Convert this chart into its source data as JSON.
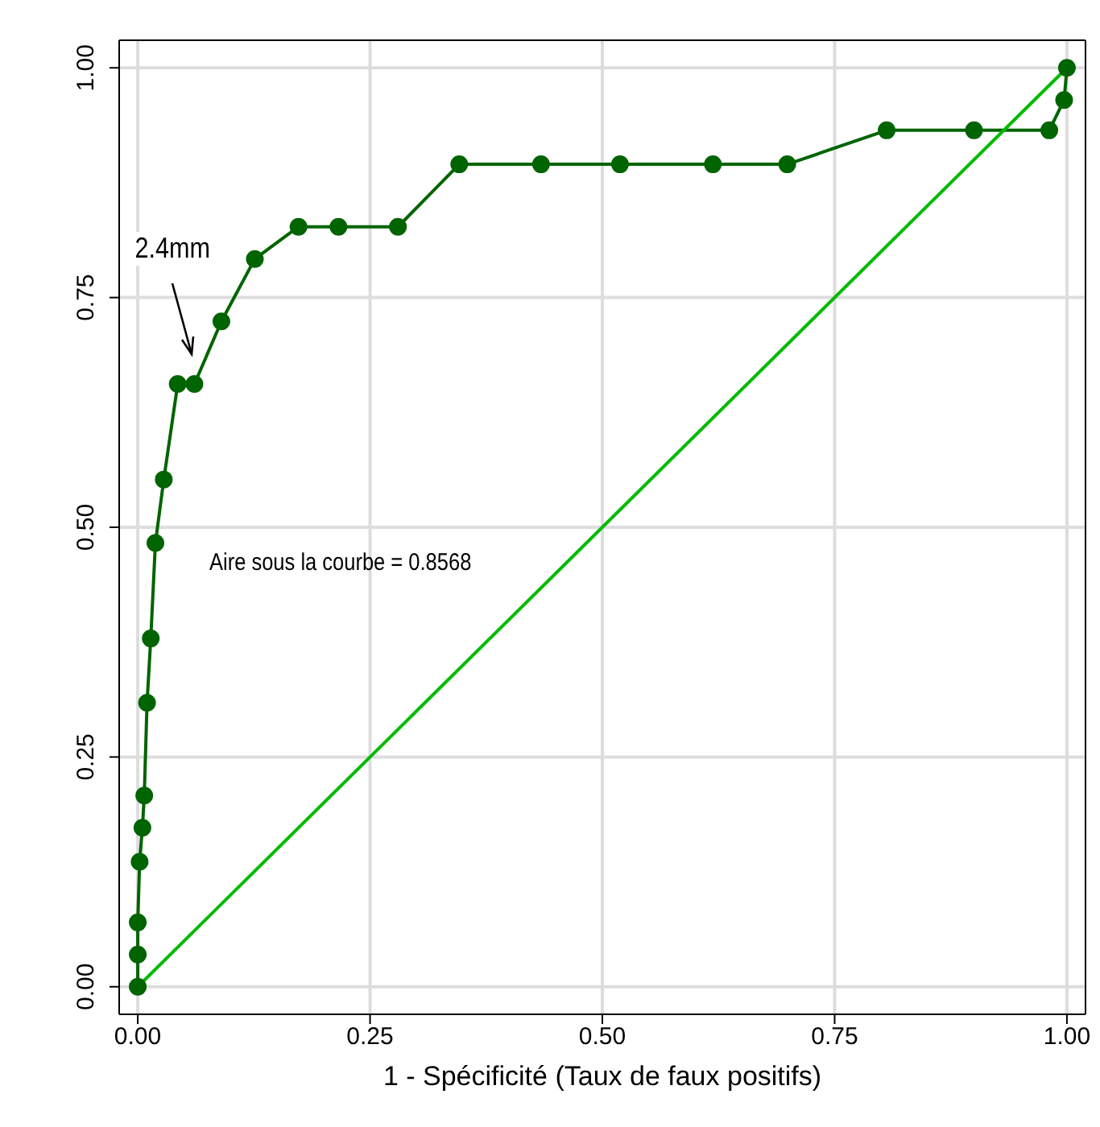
{
  "chart_data": {
    "type": "line",
    "xlabel": "1 - Spécificité (Taux de faux positifs)",
    "xlim": [
      -0.02,
      1.02
    ],
    "ylim": [
      -0.03,
      1.03
    ],
    "xticks": [
      {
        "value": 0,
        "label": "0.00"
      },
      {
        "value": 0.25,
        "label": "0.25"
      },
      {
        "value": 0.5,
        "label": "0.50"
      },
      {
        "value": 0.75,
        "label": "0.75"
      },
      {
        "value": 1,
        "label": "1.00"
      }
    ],
    "yticks": [
      {
        "value": 0,
        "label": "0.00"
      },
      {
        "value": 0.25,
        "label": "0.25"
      },
      {
        "value": 0.5,
        "label": "0.50"
      },
      {
        "value": 0.75,
        "label": "0.75"
      },
      {
        "value": 1,
        "label": "1.00"
      }
    ],
    "grid": true,
    "legend": false,
    "series": [
      {
        "color": "#006400",
        "marker": "circle",
        "x": [
          0,
          0,
          0,
          0.002,
          0.005,
          0.007,
          0.01,
          0.014,
          0.019,
          0.028,
          0.043,
          0.061,
          0.09,
          0.126,
          0.173,
          0.216,
          0.28,
          0.346,
          0.434,
          0.519,
          0.619,
          0.699,
          0.806,
          0.9,
          0.981,
          0.997,
          1
        ],
        "values": [
          0,
          0.035,
          0.07,
          0.136,
          0.173,
          0.208,
          0.309,
          0.379,
          0.483,
          0.552,
          0.656,
          0.656,
          0.724,
          0.792,
          0.827,
          0.827,
          0.827,
          0.895,
          0.895,
          0.895,
          0.895,
          0.895,
          0.932,
          0.932,
          0.932,
          0.965,
          1
        ]
      },
      {
        "color": "#00bb00",
        "marker": "none",
        "x": [
          0,
          1
        ],
        "values": [
          0,
          1
        ]
      }
    ],
    "annotations": [
      "2.4mm",
      "Aire sous la courbe = 0.8568"
    ]
  }
}
